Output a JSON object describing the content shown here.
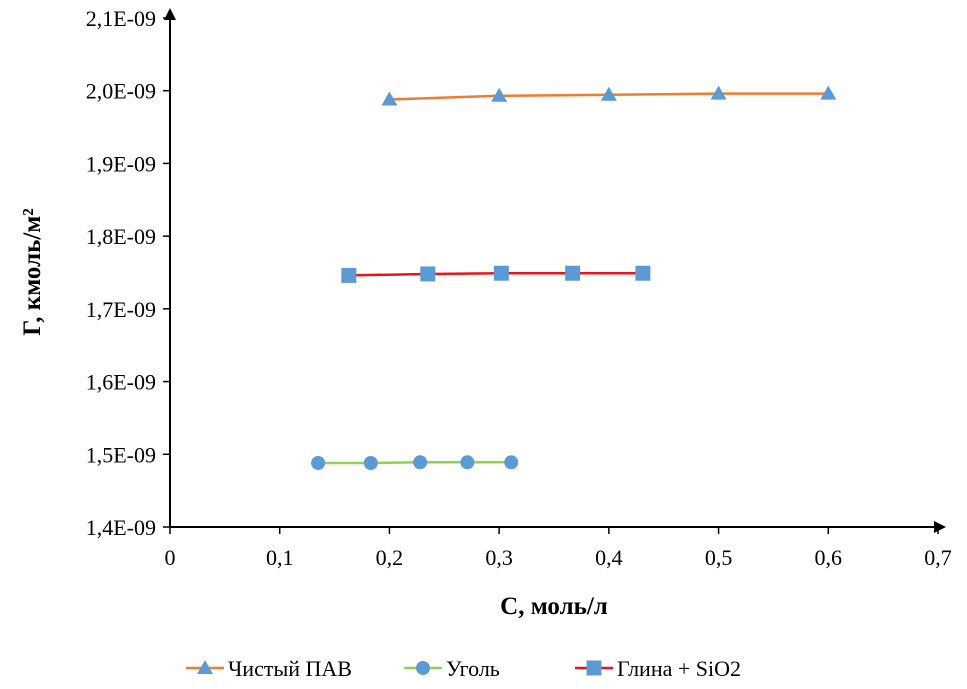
{
  "chart_data": {
    "type": "scatter",
    "title": "",
    "xlabel": "C, моль/л",
    "ylabel": "Г, кмоль/м²",
    "xlim": [
      0,
      0.7
    ],
    "ylim": [
      1.4e-09,
      2.1e-09
    ],
    "grid": false,
    "legend_position": "bottom",
    "x_ticks": [
      0,
      0.1,
      0.2,
      0.3,
      0.4,
      0.5,
      0.6,
      0.7
    ],
    "x_tick_labels": [
      "0",
      "0,1",
      "0,2",
      "0,3",
      "0,4",
      "0,5",
      "0,6",
      "0,7"
    ],
    "y_ticks": [
      1.4e-09,
      1.5e-09,
      1.6e-09,
      1.7e-09,
      1.8e-09,
      1.9e-09,
      2e-09,
      2.1e-09
    ],
    "y_tick_labels": [
      "1,4E-09",
      "1,5E-09",
      "1,6E-09",
      "1,7E-09",
      "1,8E-09",
      "1,9E-09",
      "2,0E-09",
      "2,1E-09"
    ],
    "series": [
      {
        "name": "Чистый ПАВ",
        "marker": "triangle",
        "line_color": "#ED7D31",
        "marker_color": "#5B9BD5",
        "x": [
          0.2,
          0.3,
          0.4,
          0.5,
          0.6
        ],
        "y": [
          1.988e-09,
          1.993e-09,
          1.9945e-09,
          1.996e-09,
          1.996e-09
        ]
      },
      {
        "name": "Уголь",
        "marker": "circle",
        "line_color": "#92D050",
        "marker_color": "#5B9BD5",
        "x": [
          0.135,
          0.183,
          0.228,
          0.271,
          0.311
        ],
        "y": [
          1.488e-09,
          1.488e-09,
          1.489e-09,
          1.489e-09,
          1.489e-09
        ]
      },
      {
        "name": "Глина + SiO2",
        "marker": "square",
        "line_color": "#E8151B",
        "marker_color": "#5B9BD5",
        "x": [
          0.163,
          0.235,
          0.302,
          0.367,
          0.431
        ],
        "y": [
          1.746e-09,
          1.748e-09,
          1.749e-09,
          1.749e-09,
          1.749e-09
        ]
      }
    ]
  }
}
